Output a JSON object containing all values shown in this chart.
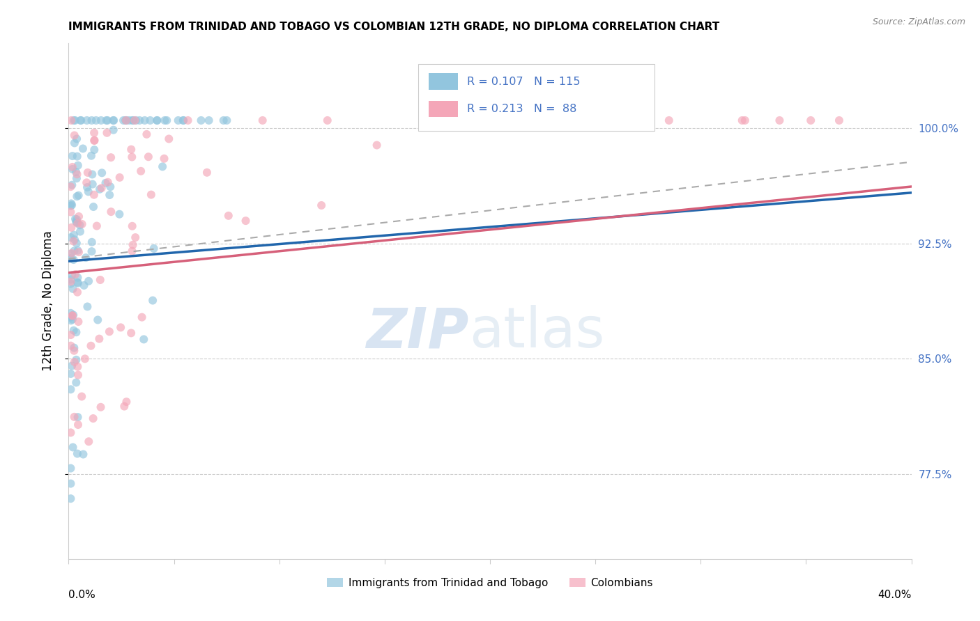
{
  "title": "IMMIGRANTS FROM TRINIDAD AND TOBAGO VS COLOMBIAN 12TH GRADE, NO DIPLOMA CORRELATION CHART",
  "source": "Source: ZipAtlas.com",
  "ylabel": "12th Grade, No Diploma",
  "y_ticks": [
    0.775,
    0.85,
    0.925,
    1.0
  ],
  "y_tick_labels": [
    "77.5%",
    "85.0%",
    "92.5%",
    "100.0%"
  ],
  "x_lim": [
    0.0,
    0.4
  ],
  "y_lim": [
    0.72,
    1.055
  ],
  "blue_color": "#92c5de",
  "pink_color": "#f4a6b8",
  "trend_blue": "#2166ac",
  "trend_pink": "#d6607a",
  "trend_gray": "#aaaaaa",
  "watermark_zip": "ZIP",
  "watermark_atlas": "atlas",
  "legend_r1": "R = 0.107",
  "legend_n1": "N = 115",
  "legend_r2": "R = 0.213",
  "legend_n2": "N =  88",
  "legend_text_color": "#4472c4",
  "n_blue": 115,
  "n_pink": 88,
  "blue_seed": 42,
  "pink_seed": 99
}
